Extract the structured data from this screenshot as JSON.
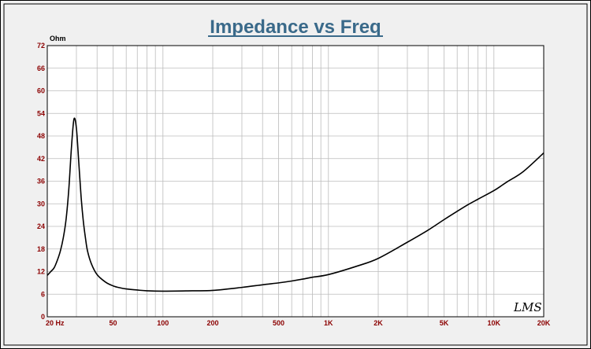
{
  "chart_data": {
    "type": "line",
    "title": "Impedance vs Freq",
    "ylabel": "Ohm",
    "xlabel": "",
    "x_scale": "log",
    "xlim": [
      20,
      20000
    ],
    "ylim": [
      0,
      72
    ],
    "grid": true,
    "x_ticks": [
      {
        "value": 20,
        "label": "20  Hz"
      },
      {
        "value": 50,
        "label": "50"
      },
      {
        "value": 100,
        "label": "100"
      },
      {
        "value": 200,
        "label": "200"
      },
      {
        "value": 500,
        "label": "500"
      },
      {
        "value": 1000,
        "label": "1K"
      },
      {
        "value": 2000,
        "label": "2K"
      },
      {
        "value": 5000,
        "label": "5K"
      },
      {
        "value": 10000,
        "label": "10K"
      },
      {
        "value": 20000,
        "label": "20K"
      }
    ],
    "y_ticks": [
      0,
      6,
      12,
      18,
      24,
      30,
      36,
      42,
      48,
      54,
      60,
      66,
      72
    ],
    "series": [
      {
        "x": [
          20,
          21,
          22,
          23,
          24,
          25,
          26,
          27,
          28,
          29,
          30,
          31,
          32,
          33,
          34,
          35,
          37,
          40,
          45,
          50,
          55,
          60,
          70,
          80,
          100,
          150,
          200,
          300,
          400,
          500,
          600,
          700,
          800,
          1000,
          1500,
          2000,
          3000,
          4000,
          5000,
          6000,
          7000,
          8000,
          10000,
          12000,
          15000,
          20000
        ],
        "y": [
          11,
          12,
          13,
          15,
          17.5,
          21,
          26,
          34,
          45,
          52.5,
          50,
          41,
          32,
          25.5,
          21,
          17.5,
          14,
          11.2,
          9.2,
          8.2,
          7.7,
          7.4,
          7.1,
          6.9,
          6.8,
          6.9,
          7.0,
          7.8,
          8.5,
          9.0,
          9.5,
          10.0,
          10.5,
          11.2,
          13.5,
          15.5,
          19.8,
          23.0,
          25.8,
          28.0,
          29.8,
          31.2,
          33.5,
          35.8,
          38.5,
          43.5
        ],
        "color": "#000000"
      }
    ]
  },
  "branding": {
    "logo_text": "LMS"
  }
}
